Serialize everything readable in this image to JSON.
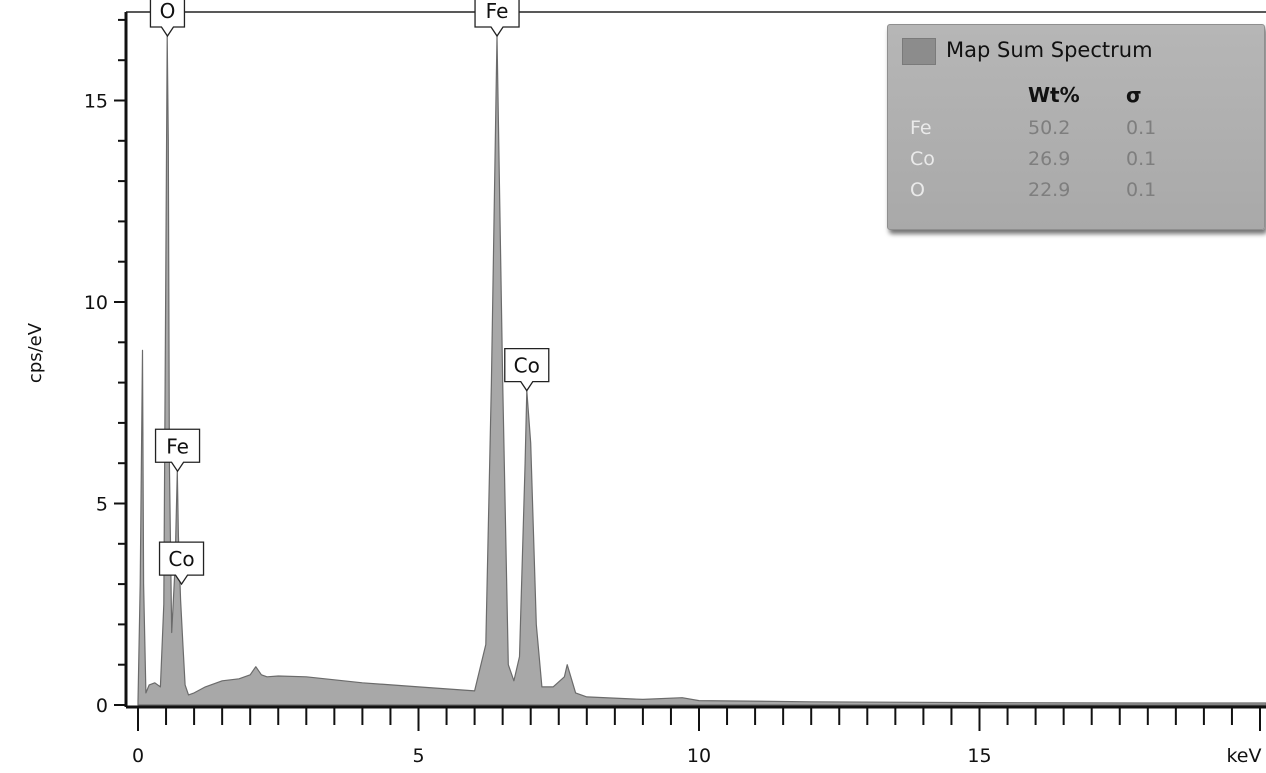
{
  "chart_data": {
    "type": "area",
    "ylabel": "cps/eV",
    "xlabel": "keV",
    "xlim": [
      -0.1,
      20.75
    ],
    "ylim": [
      0,
      17.4
    ],
    "x_ticks": [
      0,
      5,
      10,
      15
    ],
    "y_ticks": [
      0,
      5,
      10,
      15
    ],
    "series": [
      {
        "name": "Map Sum Spectrum",
        "color": "#a8a8a8",
        "x": [
          0.0,
          0.04,
          0.08,
          0.1,
          0.14,
          0.2,
          0.3,
          0.4,
          0.46,
          0.5,
          0.52,
          0.54,
          0.56,
          0.6,
          0.66,
          0.7,
          0.72,
          0.76,
          0.8,
          0.84,
          0.9,
          1.0,
          1.2,
          1.5,
          1.8,
          2.0,
          2.1,
          2.2,
          2.3,
          2.5,
          3.0,
          4.0,
          5.0,
          6.0,
          6.2,
          6.3,
          6.4,
          6.5,
          6.6,
          6.7,
          6.8,
          6.9,
          6.93,
          7.0,
          7.1,
          7.2,
          7.4,
          7.6,
          7.65,
          7.8,
          8.0,
          9.0,
          9.7,
          10.0,
          12.0,
          15.0,
          18.0,
          20.75
        ],
        "values": [
          0.1,
          3.0,
          8.8,
          3.0,
          0.3,
          0.5,
          0.55,
          0.45,
          2.5,
          12.0,
          16.6,
          14.0,
          6.0,
          1.8,
          3.4,
          5.8,
          4.2,
          2.6,
          1.5,
          0.5,
          0.25,
          0.3,
          0.45,
          0.6,
          0.65,
          0.75,
          0.95,
          0.75,
          0.7,
          0.72,
          0.7,
          0.55,
          0.45,
          0.35,
          1.5,
          8.0,
          16.6,
          8.0,
          1.0,
          0.6,
          1.2,
          6.0,
          7.8,
          6.5,
          2.0,
          0.45,
          0.45,
          0.7,
          1.0,
          0.3,
          0.2,
          0.14,
          0.18,
          0.11,
          0.08,
          0.06,
          0.05,
          0.05
        ]
      }
    ],
    "peak_labels": [
      {
        "text": "O",
        "x": 0.525,
        "y": 16.6
      },
      {
        "text": "Fe",
        "x": 6.4,
        "y": 16.6
      },
      {
        "text": "Co",
        "x": 6.93,
        "y": 7.8
      },
      {
        "text": "Fe",
        "x": 0.705,
        "y": 5.8
      },
      {
        "text": "Co",
        "x": 0.776,
        "y": 3.0
      }
    ]
  },
  "legend": {
    "title": "Map Sum Spectrum",
    "col_wt": "Wt%",
    "col_sigma": "σ",
    "rows": [
      {
        "element": "Fe",
        "wt": "50.2",
        "sigma": "0.1"
      },
      {
        "element": "Co",
        "wt": "26.9",
        "sigma": "0.1"
      },
      {
        "element": "O",
        "wt": "22.9",
        "sigma": "0.1"
      }
    ]
  }
}
